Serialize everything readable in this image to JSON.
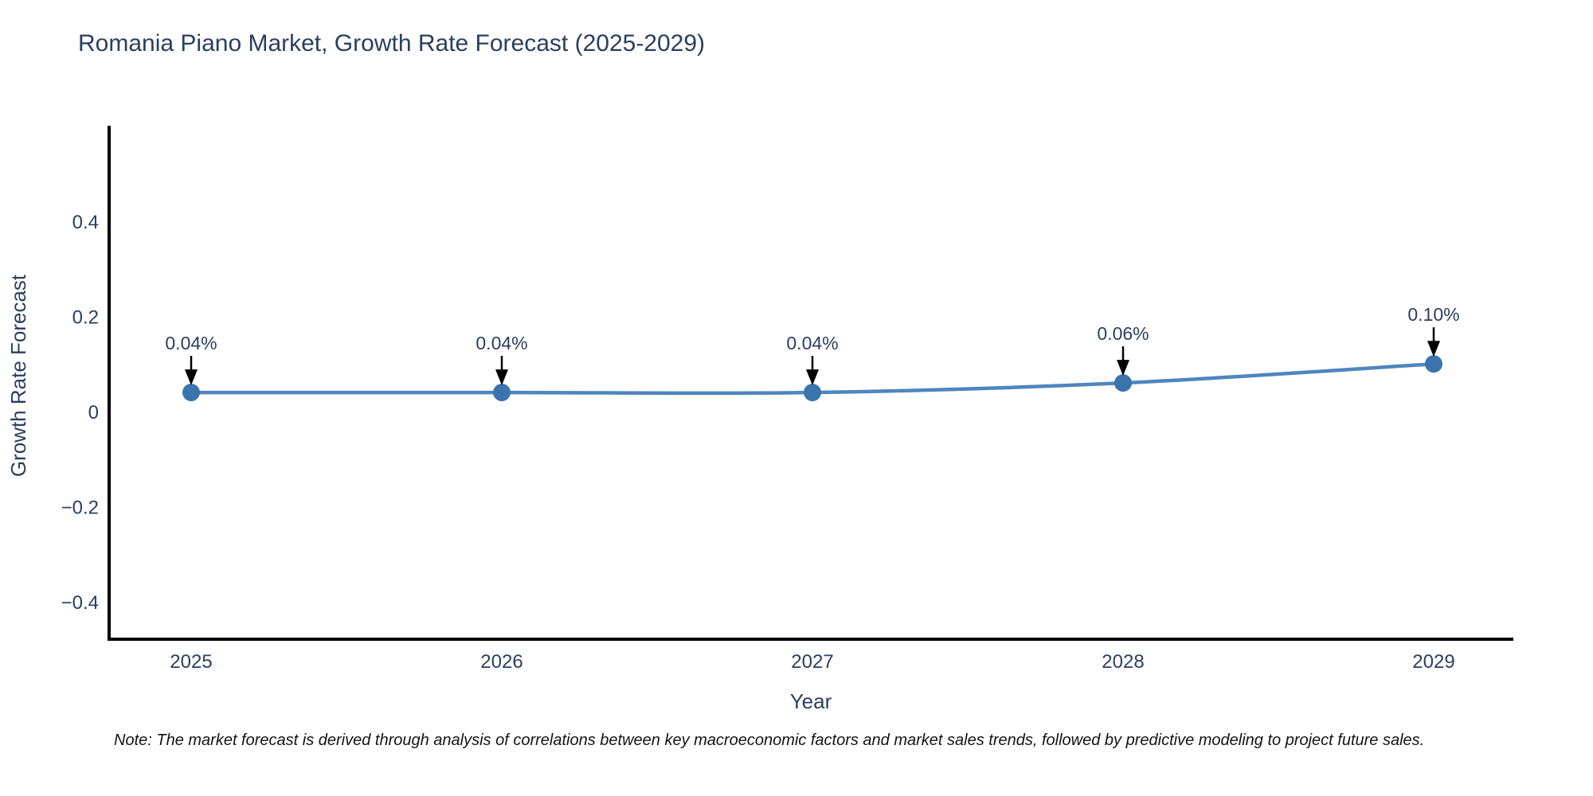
{
  "title": "Romania Piano Market, Growth Rate Forecast (2025-2029)",
  "footnote": "Note: The market forecast is derived through analysis of correlations between key macroeconomic factors and market sales trends, followed by predictive modeling to project future sales.",
  "chart_data": {
    "type": "line",
    "title": "Romania Piano Market, Growth Rate Forecast (2025-2029)",
    "xlabel": "Year",
    "ylabel": "Growth Rate Forecast",
    "x": [
      "2025",
      "2026",
      "2027",
      "2028",
      "2029"
    ],
    "y": [
      0.04,
      0.04,
      0.04,
      0.06,
      0.1
    ],
    "point_labels": [
      "0.04%",
      "0.04%",
      "0.04%",
      "0.06%",
      "0.10%"
    ],
    "ytick_values": [
      0.4,
      0.2,
      0,
      -0.2,
      -0.4
    ],
    "ytick_labels": [
      "0.4",
      "0.2",
      "0",
      "−0.2",
      "−0.4"
    ],
    "ylim": [
      -0.48,
      0.6
    ],
    "grid": false,
    "legend": "none",
    "colors": {
      "line": "#4e86bd",
      "marker": "#3b74ad",
      "axis": "#000000",
      "text": "#2a3f5f",
      "annotation": "#000000",
      "note": "#141414",
      "background": "#ffffff"
    }
  }
}
